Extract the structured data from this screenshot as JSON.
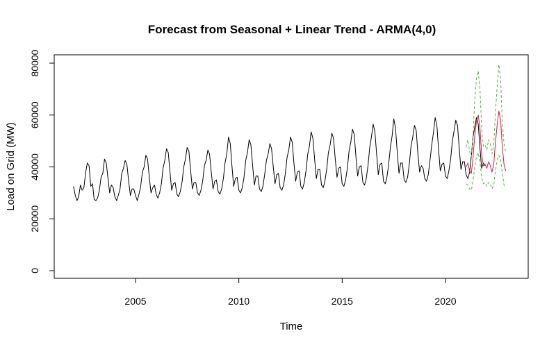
{
  "chart_data": {
    "type": "line",
    "title": "Forecast from Seasonal + Linear Trend - ARMA(4,0)",
    "xlabel": "Time",
    "ylabel": "Load on Grid (MW)",
    "xlim": [
      2002,
      2023
    ],
    "ylim": [
      0,
      82000
    ],
    "xticks": [
      2005,
      2010,
      2015,
      2020
    ],
    "yticks": [
      0,
      20000,
      40000,
      60000,
      80000
    ],
    "grid": false,
    "legend": "none",
    "series": [
      {
        "color": "#000000",
        "style": "solid",
        "x_start": 2002,
        "x_step": 0.08333,
        "values": [
          32500,
          29000,
          27000,
          28500,
          33000,
          31000,
          32000,
          37500,
          41500,
          40500,
          32500,
          33500,
          27500,
          27000,
          28000,
          31000,
          36000,
          37500,
          43000,
          41500,
          35500,
          30000,
          33000,
          32000,
          28500,
          27000,
          29000,
          31500,
          37500,
          39500,
          42500,
          41000,
          34500,
          29000,
          31500,
          31500,
          29000,
          27000,
          29500,
          32500,
          38000,
          40000,
          44500,
          43000,
          36000,
          30000,
          32000,
          33000,
          29500,
          28000,
          30000,
          33500,
          39500,
          42500,
          47000,
          45500,
          38000,
          31000,
          33500,
          34000,
          29500,
          28500,
          30500,
          34000,
          40000,
          43000,
          47500,
          46000,
          38500,
          31500,
          34000,
          34000,
          30000,
          29000,
          31000,
          34500,
          40500,
          42500,
          46500,
          45000,
          38000,
          31500,
          34500,
          35000,
          30500,
          29500,
          31500,
          35500,
          41500,
          45000,
          51500,
          49000,
          40500,
          32500,
          35500,
          36000,
          31000,
          30000,
          32000,
          36000,
          42500,
          45500,
          50500,
          48500,
          40500,
          33000,
          36500,
          36500,
          31500,
          30500,
          32500,
          37000,
          42500,
          45000,
          49000,
          47000,
          40000,
          33500,
          37000,
          37500,
          32000,
          31000,
          33000,
          37500,
          43500,
          46500,
          51500,
          49500,
          41500,
          34500,
          38000,
          38500,
          32500,
          31500,
          34000,
          38500,
          45000,
          48000,
          53500,
          51000,
          43000,
          35500,
          39000,
          39000,
          33000,
          32000,
          34500,
          39000,
          45500,
          48500,
          53000,
          51000,
          43000,
          36000,
          39500,
          40000,
          33500,
          32500,
          35000,
          39500,
          46000,
          49500,
          54500,
          52500,
          44000,
          36500,
          40000,
          40500,
          34000,
          33000,
          35500,
          40500,
          47500,
          51500,
          56500,
          53500,
          45000,
          37000,
          41000,
          41500,
          34500,
          33500,
          36000,
          41000,
          47500,
          52000,
          58500,
          55000,
          45500,
          37500,
          41500,
          41500,
          35000,
          34000,
          36000,
          41000,
          48000,
          51500,
          56000,
          54000,
          45000,
          38000,
          40500,
          39500,
          35500,
          34500,
          37000,
          42500,
          48500,
          53000,
          59000,
          56000,
          46500,
          38500,
          41000,
          41500,
          36500,
          35500,
          38500,
          43000,
          50000,
          54000,
          58000,
          56000,
          47000,
          39000,
          42000,
          42000,
          37000,
          35500,
          38000,
          44000,
          51500,
          55500,
          59000,
          56500,
          47500,
          39500,
          41500,
          40500
        ]
      },
      {
        "color": "#d6154a",
        "style": "solid",
        "x_start": 2021.0,
        "x_step": 0.08333,
        "values": [
          40000,
          41500,
          38500,
          37500,
          43500,
          52000,
          57500,
          60000,
          55000,
          45000,
          40500,
          41000,
          39500,
          42000,
          40500,
          38000,
          41000,
          49500,
          56000,
          61500,
          58000,
          47500,
          41000,
          38500
        ]
      },
      {
        "color": "#4cba32",
        "style": "dashed",
        "x_start": 2021.0,
        "x_step": 0.08333,
        "values": [
          47500,
          50500,
          46000,
          44000,
          52000,
          66000,
          74000,
          77000,
          70000,
          55000,
          48000,
          48500,
          46500,
          50500,
          49000,
          45000,
          48500,
          61000,
          71000,
          79500,
          74000,
          57000,
          49000,
          45500
        ]
      },
      {
        "color": "#4cba32",
        "style": "dashed",
        "x_start": 2021.0,
        "x_step": 0.08333,
        "values": [
          33500,
          33000,
          31500,
          31000,
          34500,
          40000,
          44000,
          45500,
          42000,
          36000,
          33500,
          34000,
          32500,
          34000,
          33500,
          31500,
          33000,
          38500,
          42500,
          44500,
          43000,
          37500,
          33000,
          32000
        ]
      }
    ]
  }
}
